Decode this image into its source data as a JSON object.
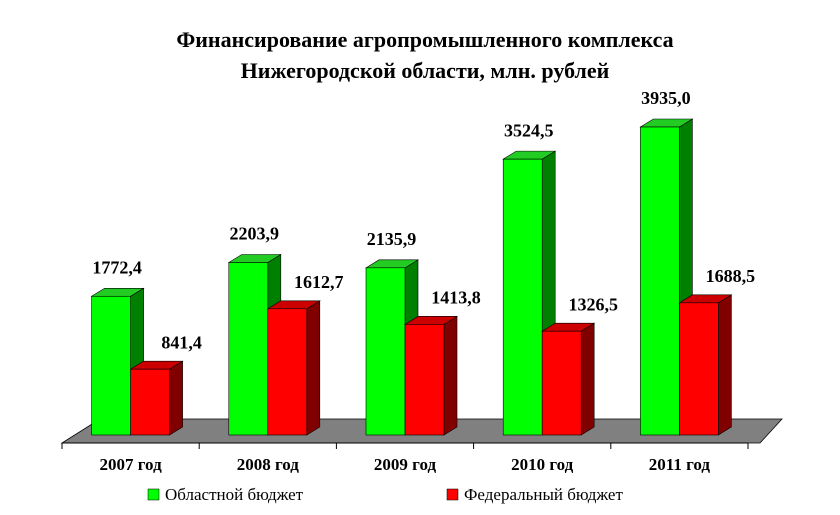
{
  "chart_data": {
    "type": "bar3d",
    "title": [
      "Финансирование агропромышленного комплекса",
      "Нижегородской области, млн. рублей"
    ],
    "categories": [
      "2007 год",
      "2008 год",
      "2009 год",
      "2010 год",
      "2011 год"
    ],
    "series": [
      {
        "name": "Областной бюджет",
        "color": "#00ff00",
        "side": "#008000",
        "top": "#22cc22",
        "values": [
          1772.4,
          2203.9,
          2135.9,
          3524.5,
          3935.0
        ],
        "value_labels": [
          "1772,4",
          "2203,9",
          "2135,9",
          "3524,5",
          "3935,0"
        ]
      },
      {
        "name": "Федеральный бюджет",
        "color": "#ff0000",
        "side": "#800000",
        "top": "#cc0000",
        "values": [
          841.4,
          1612.7,
          1413.8,
          1326.5,
          1688.5
        ],
        "value_labels": [
          "841,4",
          "1612,7",
          "1413,8",
          "1326,5",
          "1688,5"
        ]
      }
    ]
  }
}
